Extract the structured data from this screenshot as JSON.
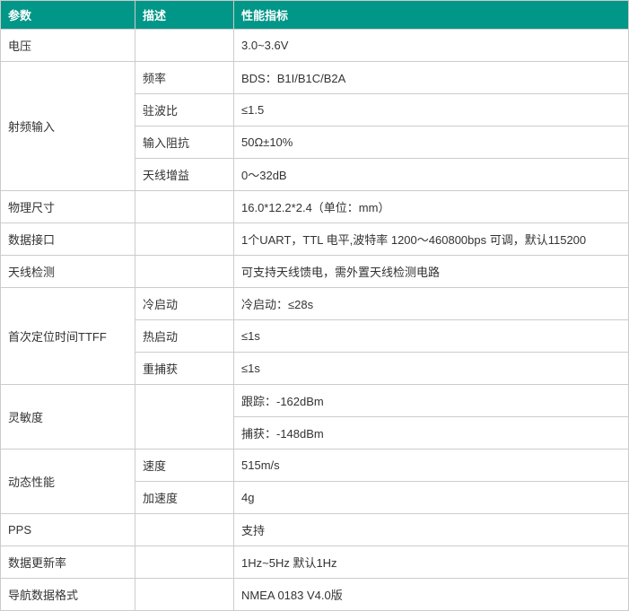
{
  "colors": {
    "header_bg": "#009688",
    "header_fg": "#ffffff",
    "border": "#cccccc",
    "cell_bg": "#ffffff",
    "cell_fg": "#333333"
  },
  "columns": {
    "param": "参数",
    "desc": "描述",
    "spec": "性能指标"
  },
  "rows": {
    "voltage": {
      "param": "电压",
      "desc": "",
      "spec": "3.0~3.6V"
    },
    "rf": {
      "param": "射频输入",
      "freq": {
        "desc": "频率",
        "spec": "BDS：B1I/B1C/B2A"
      },
      "vswr": {
        "desc": "驻波比",
        "spec": "≤1.5"
      },
      "impedance": {
        "desc": "输入阻抗",
        "spec": "50Ω±10%"
      },
      "ant_gain": {
        "desc": "天线增益",
        "spec": "0～32dB"
      }
    },
    "dimensions": {
      "param": "物理尺寸",
      "desc": "",
      "spec": "16.0*12.2*2.4（单位：mm）"
    },
    "data_if": {
      "param": "数据接口",
      "desc": "",
      "spec": "1个UART，TTL 电平,波特率 1200～460800bps 可调，默认115200"
    },
    "ant_detect": {
      "param": "天线检测",
      "desc": "",
      "spec": "可支持天线馈电，需外置天线检测电路"
    },
    "ttff": {
      "param": "首次定位时间TTFF",
      "cold": {
        "desc": "冷启动",
        "spec": "冷启动：≤28s"
      },
      "hot": {
        "desc": "热启动",
        "spec": "≤1s"
      },
      "reacq": {
        "desc": "重捕获",
        "spec": "≤1s"
      }
    },
    "sensitivity": {
      "param": "灵敏度",
      "desc": "",
      "track": {
        "spec": "跟踪：-162dBm"
      },
      "acq": {
        "spec": "捕获：-148dBm"
      }
    },
    "dynamic": {
      "param": "动态性能",
      "speed": {
        "desc": "速度",
        "spec": "515m/s"
      },
      "accel": {
        "desc": "加速度",
        "spec": "4g"
      }
    },
    "pps": {
      "param": "PPS",
      "desc": "",
      "spec": "支持"
    },
    "update_rate": {
      "param": "数据更新率",
      "desc": "",
      "spec": "1Hz~5Hz 默认1Hz"
    },
    "nav_format": {
      "param": "导航数据格式",
      "desc": "",
      "spec": "NMEA 0183  V4.0版"
    }
  }
}
